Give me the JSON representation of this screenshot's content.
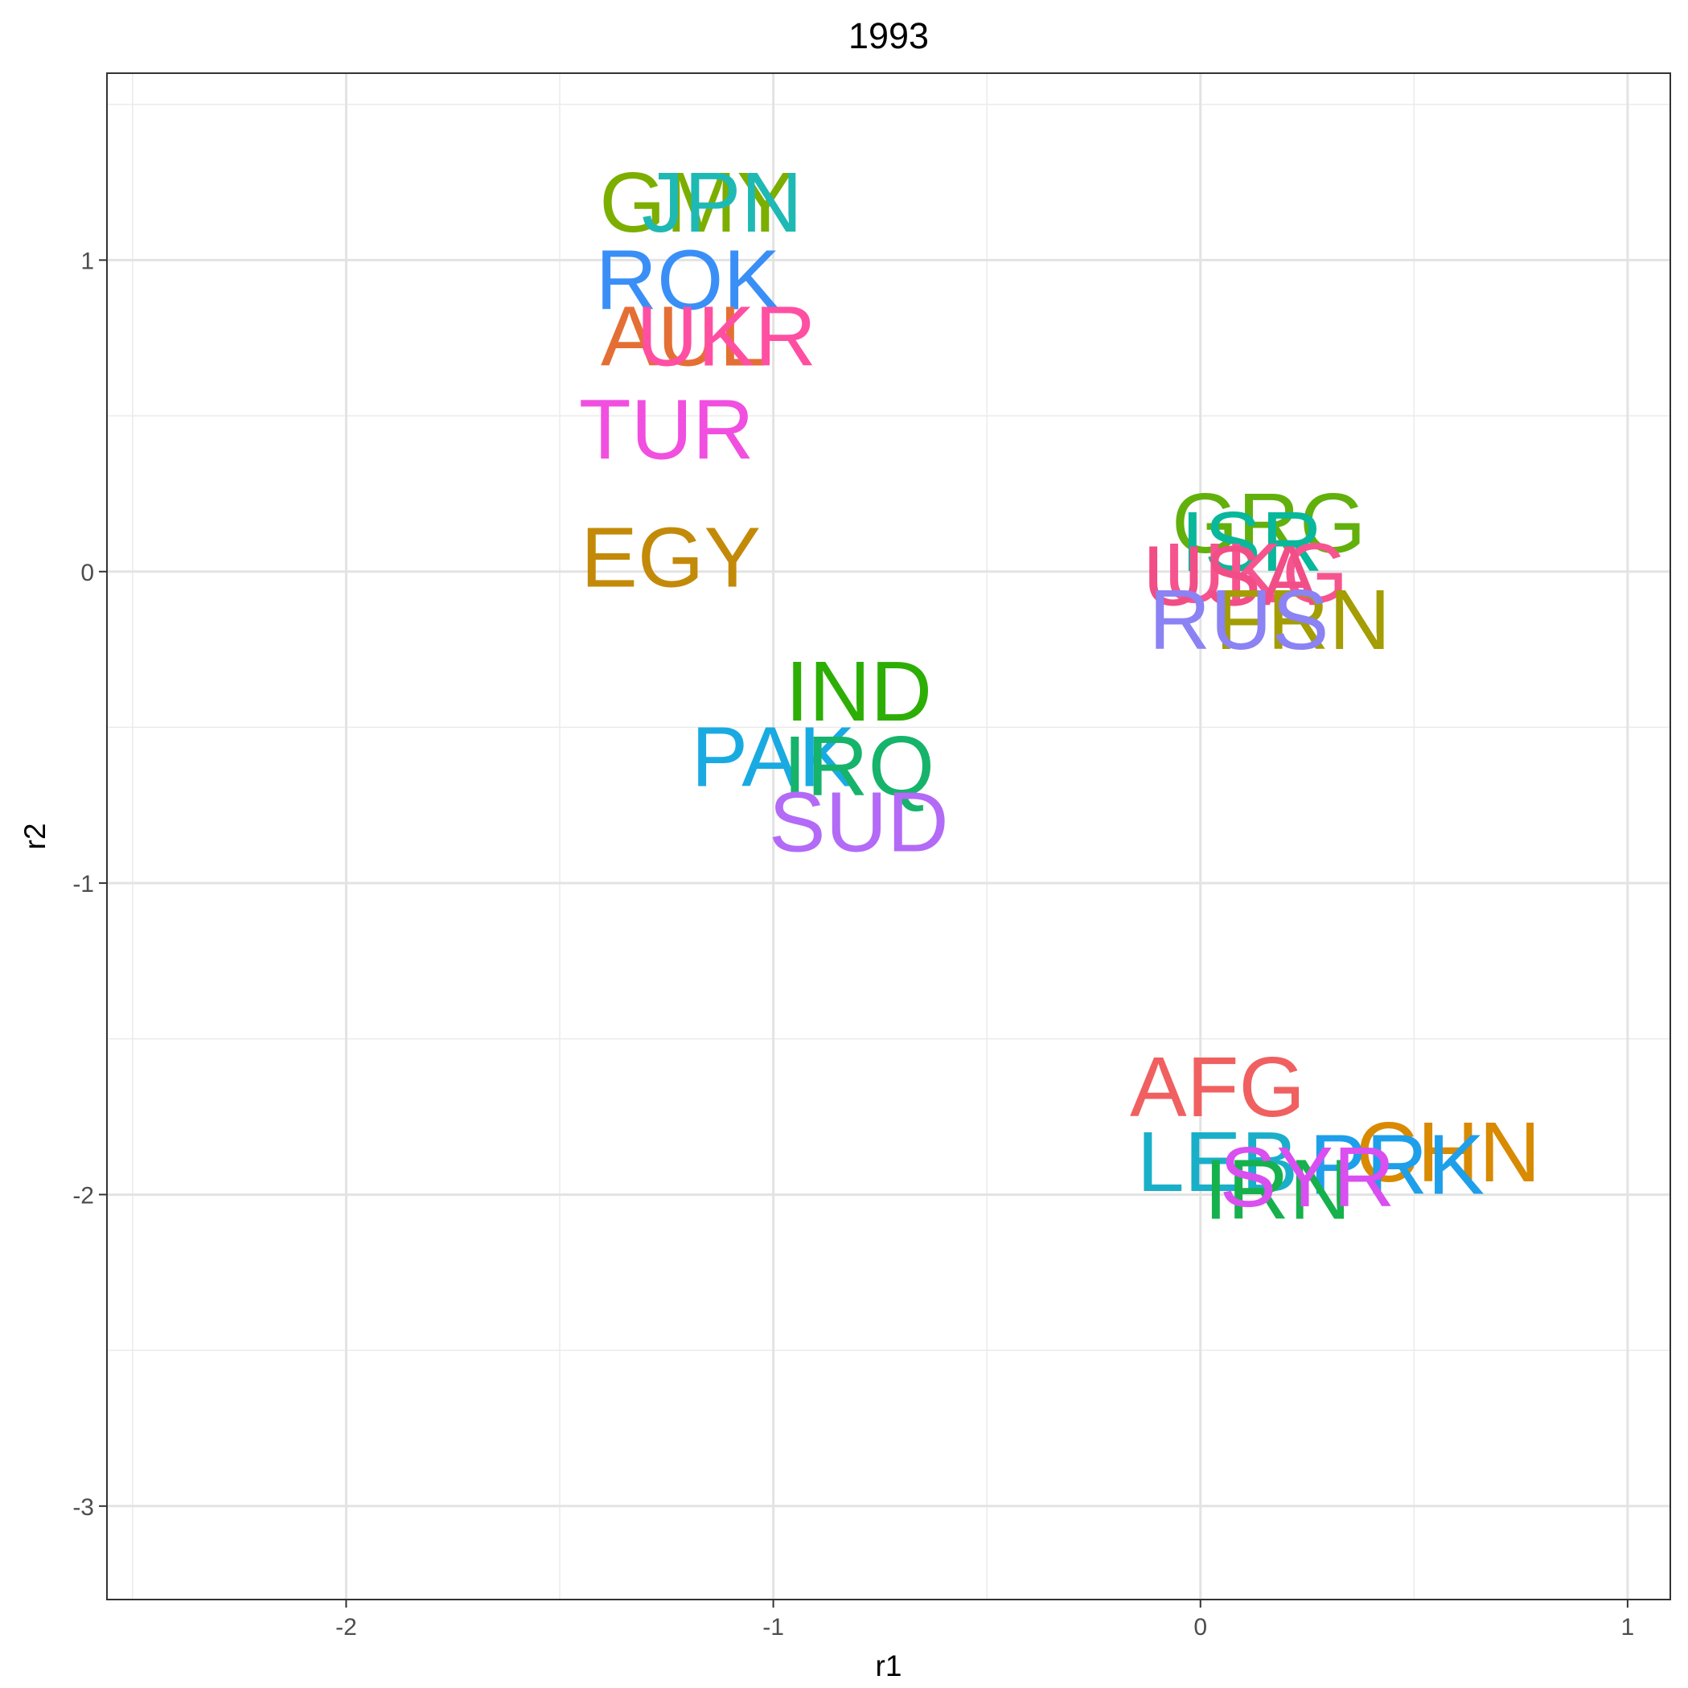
{
  "chart_data": {
    "type": "scatter",
    "title": "1993",
    "xlabel": "r1",
    "ylabel": "r2",
    "xlim": [
      -2.56,
      1.1
    ],
    "ylim": [
      -3.3,
      1.6
    ],
    "x_ticks": [
      -2,
      -1,
      0,
      1
    ],
    "y_ticks": [
      -3,
      -2,
      -1,
      0,
      1
    ],
    "x_tick_labels": [
      "-2",
      "-1",
      "0",
      "1"
    ],
    "y_tick_labels": [
      "-3",
      "-2",
      "-1",
      "0",
      "1"
    ],
    "grid": true,
    "legend": "none",
    "points": [
      {
        "label": "GMY",
        "x": -1.18,
        "y": 1.19,
        "color": "#7CAE00"
      },
      {
        "label": "JPN",
        "x": -1.12,
        "y": 1.19,
        "color": "#1FB9B4"
      },
      {
        "label": "ROK",
        "x": -1.2,
        "y": 0.94,
        "color": "#3A8FF7"
      },
      {
        "label": "AUL",
        "x": -1.21,
        "y": 0.76,
        "color": "#E46F35"
      },
      {
        "label": "UKR",
        "x": -1.11,
        "y": 0.76,
        "color": "#FF4FA2"
      },
      {
        "label": "TUR",
        "x": -1.25,
        "y": 0.46,
        "color": "#F14FE0"
      },
      {
        "label": "EGY",
        "x": -1.24,
        "y": 0.05,
        "color": "#C38A09"
      },
      {
        "label": "IND",
        "x": -0.8,
        "y": -0.38,
        "color": "#2DAE05"
      },
      {
        "label": "PAK",
        "x": -1.0,
        "y": -0.59,
        "color": "#1AAAE2"
      },
      {
        "label": "IRQ",
        "x": -0.8,
        "y": -0.62,
        "color": "#16B36B"
      },
      {
        "label": "SUD",
        "x": -0.8,
        "y": -0.8,
        "color": "#B36AF7"
      },
      {
        "label": "GRG",
        "x": 0.16,
        "y": 0.16,
        "color": "#61B00C"
      },
      {
        "label": "ISR",
        "x": 0.12,
        "y": 0.1,
        "color": "#09B79B"
      },
      {
        "label": "UKG",
        "x": 0.13,
        "y": -0.0,
        "color": "#F6548E"
      },
      {
        "label": "USA",
        "x": 0.07,
        "y": -0.01,
        "color": "#F14E87"
      },
      {
        "label": "FRN",
        "x": 0.24,
        "y": -0.15,
        "color": "#A49D03"
      },
      {
        "label": "RUS",
        "x": 0.09,
        "y": -0.15,
        "color": "#8B82F4"
      },
      {
        "label": "AFG",
        "x": 0.04,
        "y": -1.65,
        "color": "#F06060"
      },
      {
        "label": "CHN",
        "x": 0.58,
        "y": -1.86,
        "color": "#D88A00"
      },
      {
        "label": "LEB",
        "x": 0.04,
        "y": -1.89,
        "color": "#1AAFC8"
      },
      {
        "label": "PRK",
        "x": 0.46,
        "y": -1.9,
        "color": "#1E9FEA"
      },
      {
        "label": "IRN",
        "x": 0.18,
        "y": -1.98,
        "color": "#16B14C"
      },
      {
        "label": "SYR",
        "x": 0.25,
        "y": -1.94,
        "color": "#D94FF0"
      }
    ]
  }
}
